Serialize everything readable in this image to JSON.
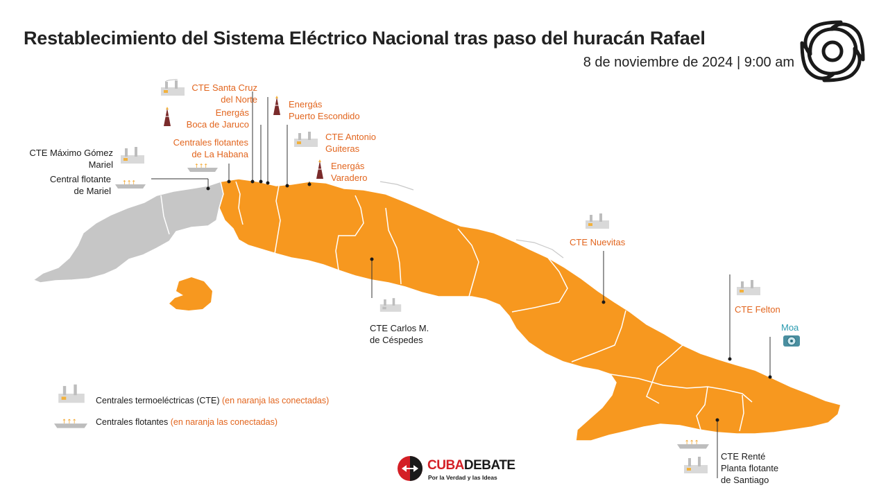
{
  "title": "Restablecimiento del Sistema Eléctrico Nacional tras paso del huracán Rafael",
  "subtitle": "8 de noviembre de 2024 | 9:00 am",
  "colors": {
    "connected": "#f7981f",
    "disconnected": "#c6c6c6",
    "label_connected": "#e2651e",
    "label_disconnected": "#1a1a1a",
    "moa": "#2a9bb0"
  },
  "plants": {
    "santa_cruz": {
      "line1": "CTE Santa Cruz",
      "line2": "del Norte",
      "icon": "thermoelectric-plant-icon"
    },
    "boca_jaruco": {
      "line1": "Energás",
      "line2": "Boca de Jaruco",
      "icon": "gas-tower-icon"
    },
    "puerto_escondido": {
      "line1": "Energás",
      "line2": "Puerto Escondido",
      "icon": "gas-tower-icon"
    },
    "antonio_guiteras": {
      "line1": "CTE Antonio",
      "line2": "Guiteras",
      "icon": "thermoelectric-plant-icon"
    },
    "flotantes_habana": {
      "line1": "Centrales flotantes",
      "line2": "de La Habana",
      "icon": "floating-plant-icon"
    },
    "varadero": {
      "line1": "Energás",
      "line2": "Varadero",
      "icon": "gas-tower-icon"
    },
    "maximo_gomez": {
      "line1": "CTE Máximo Gómez",
      "line2": "Mariel",
      "icon": "thermoelectric-plant-icon"
    },
    "flotante_mariel": {
      "line1": "Central flotante",
      "line2": "de Mariel",
      "icon": "floating-plant-icon"
    },
    "nuevitas": {
      "line1": "CTE Nuevitas",
      "icon": "thermoelectric-plant-icon"
    },
    "carlos_cespedes": {
      "line1": "CTE Carlos M.",
      "line2": "de Céspedes",
      "icon": "thermoelectric-plant-icon"
    },
    "felton": {
      "line1": "CTE Felton",
      "icon": "thermoelectric-plant-icon"
    },
    "moa": {
      "line1": "Moa",
      "icon": "turbine-icon"
    },
    "rente": {
      "line1": "CTE Renté",
      "line2": "Planta flotante",
      "line3": "de Santiago",
      "icon": "thermoelectric-plant-icon"
    }
  },
  "legend": [
    {
      "label": "Centrales termoeléctricas (CTE)",
      "note": "(en naranja las conectadas)",
      "icon": "thermoelectric-plant-icon"
    },
    {
      "label": "Centrales flotantes",
      "note": "(en naranja las conectadas)",
      "icon": "floating-plant-icon"
    }
  ],
  "logo": {
    "name_red": "CUBA",
    "name_dark": "DEBATE",
    "tagline": "Por la Verdad y las Ideas"
  }
}
